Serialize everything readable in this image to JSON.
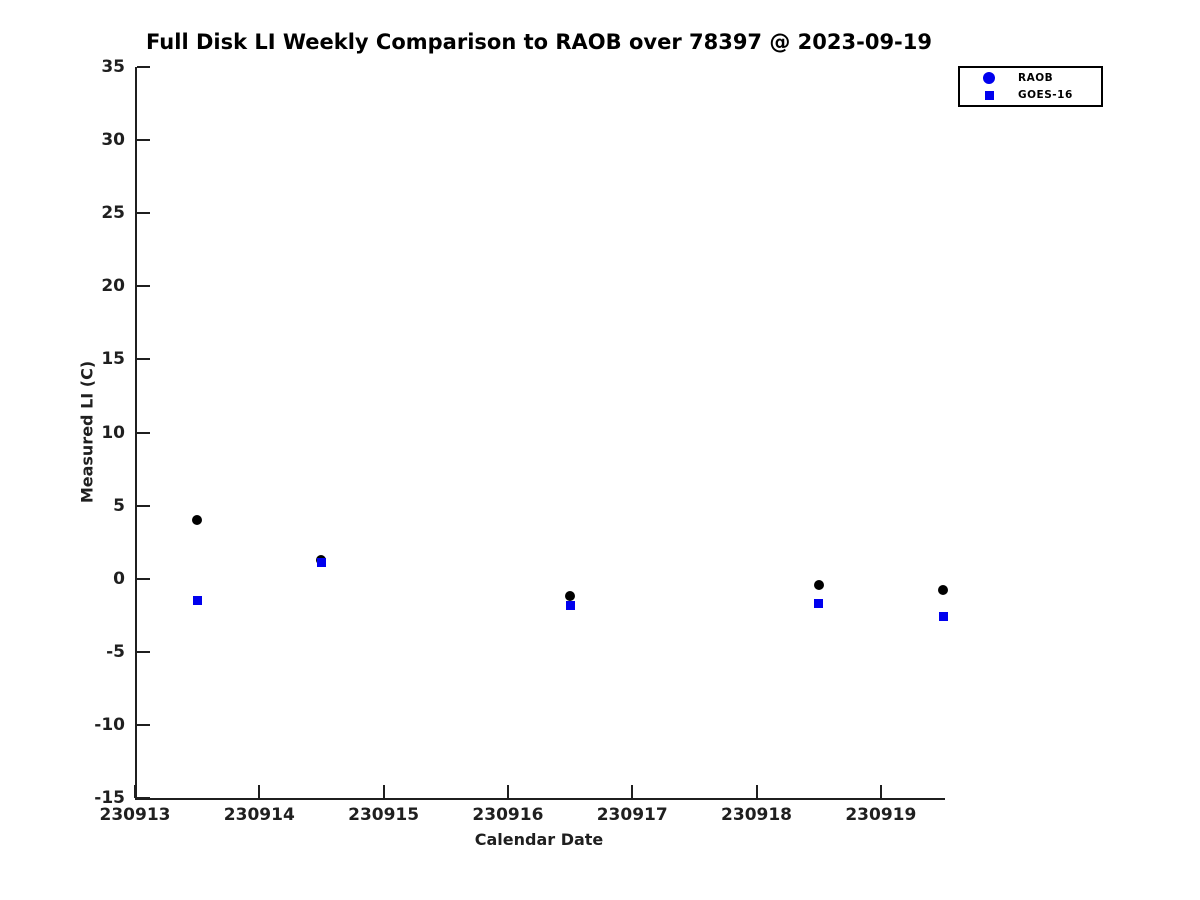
{
  "title": "Full Disk LI Weekly Comparison to RAOB over 78397 @ 2023-09-19",
  "chart_data": {
    "type": "scatter",
    "title": "Full Disk LI Weekly Comparison to RAOB over 78397 @ 2023-09-19",
    "xlabel": "Calendar Date",
    "ylabel": "Measured LI (C)",
    "xlim": [
      230913,
      230919.5
    ],
    "ylim": [
      -15,
      35
    ],
    "xticks": [
      230913,
      230914,
      230915,
      230916,
      230917,
      230918,
      230919
    ],
    "yticks": [
      -15,
      -10,
      -5,
      0,
      5,
      10,
      15,
      20,
      25,
      30,
      35
    ],
    "grid": false,
    "background": "#ffffff",
    "axis_color": "#1f1f1f",
    "legend": {
      "position": "top-right-outside",
      "border": true,
      "entries": [
        {
          "label": "RAOB",
          "marker": "circle",
          "color": "#0000ee"
        },
        {
          "label": "GOES-16",
          "marker": "square",
          "color": "#0000ee"
        }
      ]
    },
    "series": [
      {
        "name": "RAOB",
        "marker": "circle",
        "color": "#000000",
        "points": [
          [
            230913.5,
            4.0
          ],
          [
            230914.5,
            1.3
          ],
          [
            230916.5,
            -1.2
          ],
          [
            230918.5,
            -0.4
          ],
          [
            230919.5,
            -0.8
          ]
        ]
      },
      {
        "name": "GOES-16",
        "marker": "square",
        "color": "#0000ee",
        "points": [
          [
            230913.5,
            -1.5
          ],
          [
            230914.5,
            1.1
          ],
          [
            230916.5,
            -1.8
          ],
          [
            230918.5,
            -1.7
          ],
          [
            230919.5,
            -2.6
          ]
        ]
      }
    ]
  }
}
